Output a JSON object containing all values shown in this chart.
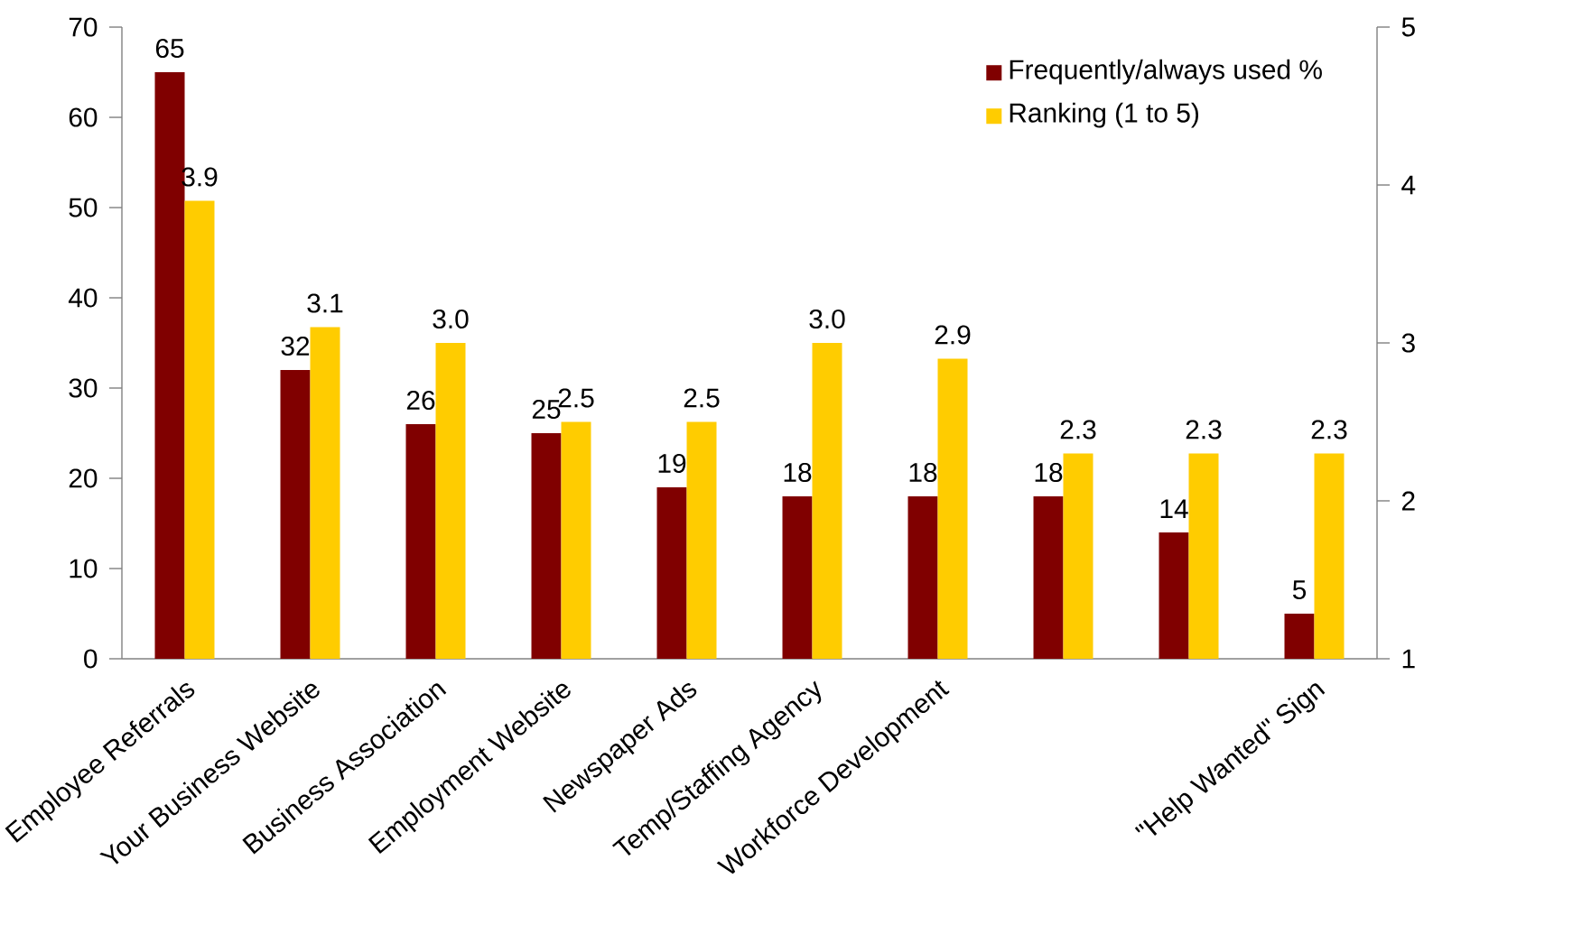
{
  "chart_data": {
    "type": "bar",
    "categories": [
      "Employee Referrals",
      "Your Business Website",
      "Business Association",
      "Employment Website",
      "Newspaper Ads",
      "Temp/Staffing Agency",
      "Workforce Development",
      null,
      null,
      "\"Help Wanted\" Sign"
    ],
    "series": [
      {
        "name": "Frequently/always used %",
        "color": "#800000",
        "values": [
          65,
          32,
          26,
          25,
          19,
          18,
          18,
          18,
          14,
          5
        ],
        "value_labels": [
          "65",
          "32",
          "26",
          "25",
          "19",
          "18",
          "18",
          "18",
          "14",
          "5"
        ]
      },
      {
        "name": "Ranking (1 to 5)",
        "color": "#ffcc00",
        "axis": "y2",
        "values": [
          3.9,
          3.1,
          3.0,
          2.5,
          2.5,
          3.0,
          2.9,
          2.3,
          2.3,
          2.3
        ],
        "value_labels": [
          "3.9",
          "3.1",
          "3.0",
          "2.5",
          "2.5",
          "3.0",
          "2.9",
          "2.3",
          "2.3",
          "2.3"
        ]
      }
    ],
    "ylim": [
      0,
      70
    ],
    "yticks": [
      0,
      10,
      20,
      30,
      40,
      50,
      60,
      70
    ],
    "y2lim": [
      1,
      5
    ],
    "y2ticks": [
      1,
      2,
      3,
      4,
      5
    ],
    "legend": "top right"
  }
}
